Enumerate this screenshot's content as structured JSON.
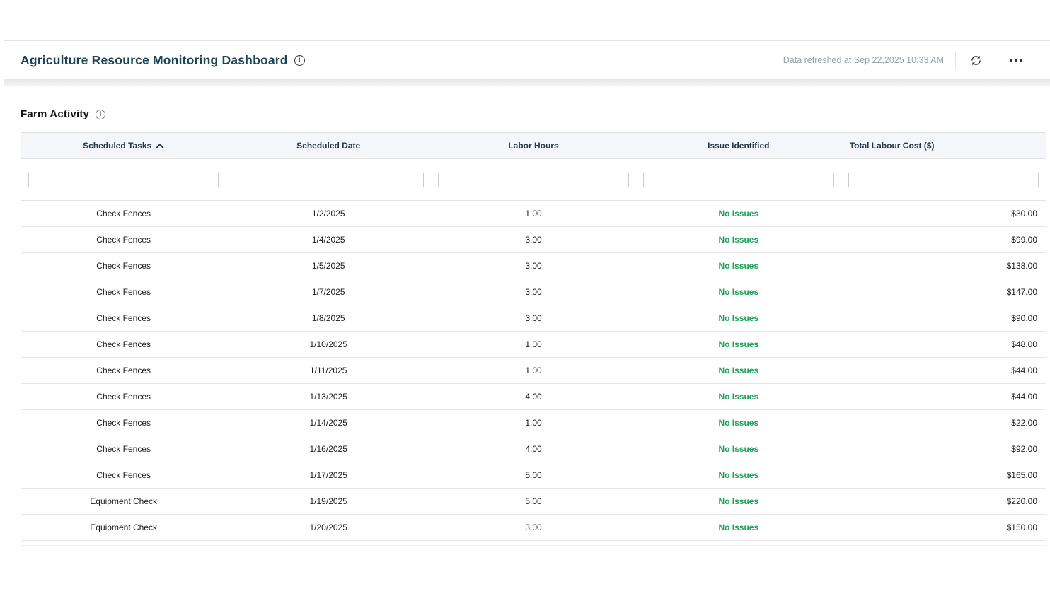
{
  "app_header": {
    "title": "Agriculture Resource Monitoring Dashboard",
    "refreshed_text": "Data refreshed at Sep 22,2025 10:33 AM"
  },
  "section": {
    "title": "Farm Activity"
  },
  "table": {
    "columns": [
      {
        "label": "Scheduled Tasks",
        "sorted": "asc",
        "align": "center"
      },
      {
        "label": "Scheduled Date",
        "sorted": null,
        "align": "center"
      },
      {
        "label": "Labor Hours",
        "sorted": null,
        "align": "center"
      },
      {
        "label": "Issue Identified",
        "sorted": null,
        "align": "center"
      },
      {
        "label": "Total Labour Cost ($)",
        "sorted": null,
        "align": "left"
      }
    ],
    "filters": {
      "values": [
        "",
        "",
        "",
        "",
        ""
      ],
      "placeholder": ""
    },
    "rows": [
      {
        "task": "Check Fences",
        "date": "1/2/2025",
        "hours": "1.00",
        "issue": "No Issues",
        "cost": "$30.00"
      },
      {
        "task": "Check Fences",
        "date": "1/4/2025",
        "hours": "3.00",
        "issue": "No Issues",
        "cost": "$99.00"
      },
      {
        "task": "Check Fences",
        "date": "1/5/2025",
        "hours": "3.00",
        "issue": "No Issues",
        "cost": "$138.00"
      },
      {
        "task": "Check Fences",
        "date": "1/7/2025",
        "hours": "3.00",
        "issue": "No Issues",
        "cost": "$147.00"
      },
      {
        "task": "Check Fences",
        "date": "1/8/2025",
        "hours": "3.00",
        "issue": "No Issues",
        "cost": "$90.00"
      },
      {
        "task": "Check Fences",
        "date": "1/10/2025",
        "hours": "1.00",
        "issue": "No Issues",
        "cost": "$48.00"
      },
      {
        "task": "Check Fences",
        "date": "1/11/2025",
        "hours": "1.00",
        "issue": "No Issues",
        "cost": "$44.00"
      },
      {
        "task": "Check Fences",
        "date": "1/13/2025",
        "hours": "4.00",
        "issue": "No Issues",
        "cost": "$44.00"
      },
      {
        "task": "Check Fences",
        "date": "1/14/2025",
        "hours": "1.00",
        "issue": "No Issues",
        "cost": "$22.00"
      },
      {
        "task": "Check Fences",
        "date": "1/16/2025",
        "hours": "4.00",
        "issue": "No Issues",
        "cost": "$92.00"
      },
      {
        "task": "Check Fences",
        "date": "1/17/2025",
        "hours": "5.00",
        "issue": "No Issues",
        "cost": "$165.00"
      },
      {
        "task": "Equipment Check",
        "date": "1/19/2025",
        "hours": "5.00",
        "issue": "No Issues",
        "cost": "$220.00"
      },
      {
        "task": "Equipment Check",
        "date": "1/20/2025",
        "hours": "3.00",
        "issue": "No Issues",
        "cost": "$150.00"
      }
    ]
  },
  "icons": {
    "title_info": "circled-i",
    "section_info": "circled-i",
    "refresh": "circular-arrows",
    "more": "horizontal-ellipsis",
    "sort_asc": "caret-up"
  },
  "colors": {
    "title_text": "#1d4456",
    "column_header_text": "#25384a",
    "issue_ok_green": "#1fa05a",
    "muted_text": "#99a1a8",
    "table_header_bg": "#f4f6f9",
    "table_border": "#e2e2e2"
  }
}
